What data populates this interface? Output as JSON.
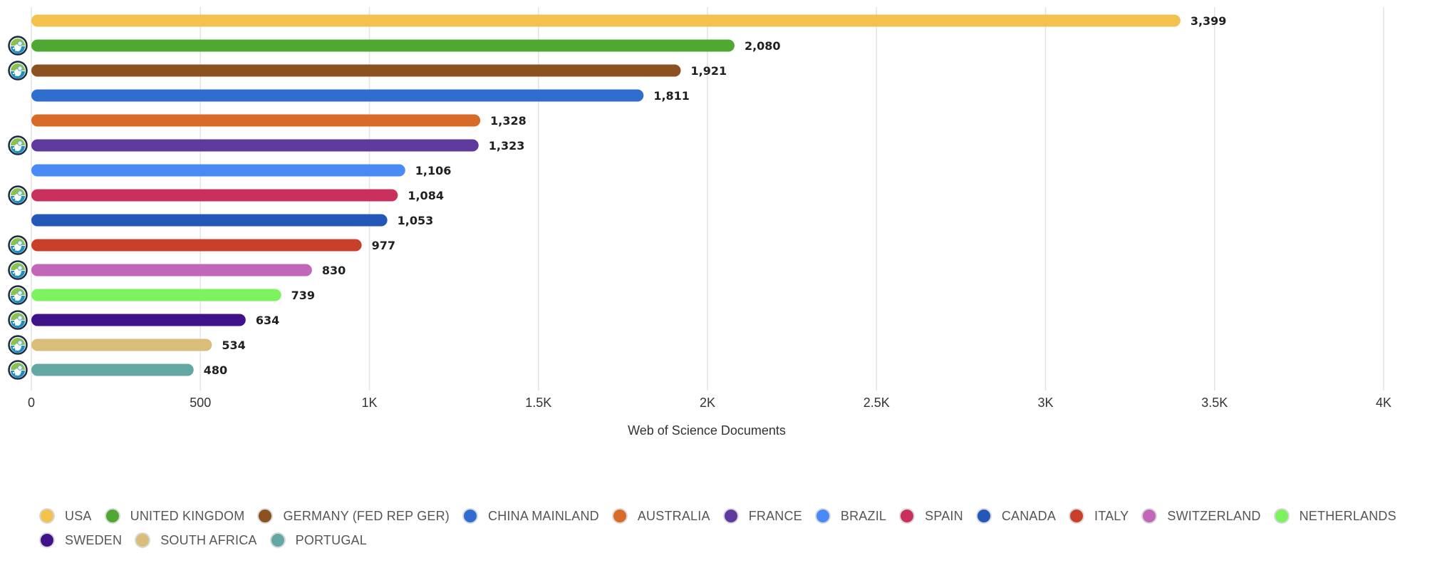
{
  "chart_data": {
    "type": "bar",
    "orientation": "horizontal",
    "categories": [
      "USA",
      "UNITED KINGDOM",
      "GERMANY (FED REP GER)",
      "CHINA MAINLAND",
      "AUSTRALIA",
      "FRANCE",
      "BRAZIL",
      "SPAIN",
      "CANADA",
      "ITALY",
      "SWITZERLAND",
      "NETHERLANDS",
      "SWEDEN",
      "SOUTH AFRICA",
      "PORTUGAL"
    ],
    "values": [
      3399,
      2080,
      1921,
      1811,
      1328,
      1323,
      1106,
      1084,
      1053,
      977,
      830,
      739,
      634,
      534,
      480
    ],
    "value_labels": [
      "3,399",
      "2,080",
      "1,921",
      "1,811",
      "1,328",
      "1,323",
      "1,106",
      "1,084",
      "1,053",
      "977",
      "830",
      "739",
      "634",
      "534",
      "480"
    ],
    "colors": [
      "#F2C14E",
      "#4EA832",
      "#8B5120",
      "#2F6ECF",
      "#D96B28",
      "#5D3A9B",
      "#4A8AF4",
      "#C9305E",
      "#2458B8",
      "#C8402A",
      "#C166B9",
      "#7CF25E",
      "#40128A",
      "#D9BD7A",
      "#63A8A3"
    ],
    "badge_shown": [
      false,
      true,
      true,
      false,
      false,
      true,
      false,
      true,
      false,
      true,
      true,
      true,
      true,
      true,
      true
    ],
    "xlabel": "Web of Science Documents",
    "xlim": [
      0,
      4000
    ],
    "x_ticks": [
      0,
      500,
      1000,
      1500,
      2000,
      2500,
      3000,
      3500,
      4000
    ],
    "x_tick_labels": [
      "0",
      "500",
      "1K",
      "1.5K",
      "2K",
      "2.5K",
      "3K",
      "3.5K",
      "4K"
    ],
    "grid": true,
    "legend_position": "bottom"
  },
  "badge_icon": "open-access-globe-icon"
}
